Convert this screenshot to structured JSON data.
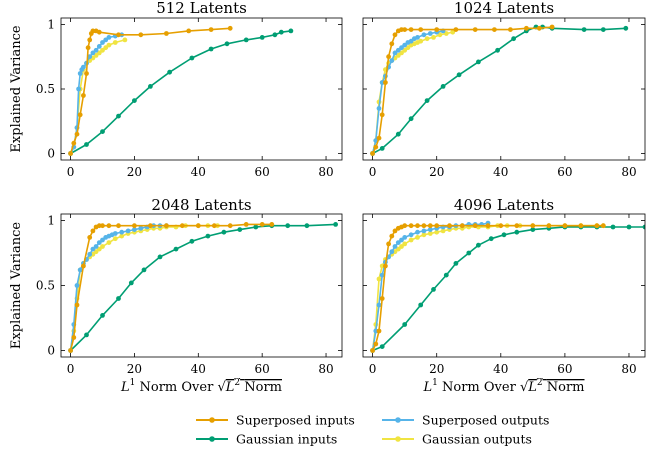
{
  "figure": {
    "ylabel": "Explained Variance",
    "xlabel_parts": {
      "l1": "L",
      "l1_sup": "1",
      "norm_over": "Norm Over",
      "l2": "L",
      "l2_sup": "2",
      "norm": "Norm"
    }
  },
  "chart_data": [
    {
      "type": "line",
      "title": "512 Latents",
      "xlim": [
        -3,
        85
      ],
      "ylim": [
        -0.05,
        1.05
      ],
      "xticks": [
        0,
        20,
        40,
        60,
        80
      ],
      "yticks": [
        0,
        0.5,
        1
      ],
      "ytick_labels": [
        "0",
        "0.5",
        "1"
      ],
      "xtick_labels": [
        "0",
        "20",
        "40",
        "60",
        "80"
      ],
      "series": [
        {
          "name": "Superposed inputs",
          "color": "#E69F00",
          "x": [
            0,
            1,
            2,
            3,
            4,
            5,
            5.5,
            6,
            6.5,
            7,
            8,
            9,
            15,
            22,
            30,
            37,
            44,
            50
          ],
          "y": [
            0.0,
            0.08,
            0.15,
            0.3,
            0.45,
            0.62,
            0.82,
            0.88,
            0.93,
            0.95,
            0.95,
            0.94,
            0.92,
            0.92,
            0.93,
            0.95,
            0.96,
            0.97
          ]
        },
        {
          "name": "Superposed outputs",
          "color": "#56B4E9",
          "x": [
            0,
            1,
            2,
            2.5,
            3,
            3.5,
            4,
            5,
            6,
            7,
            8,
            9,
            10,
            11,
            12,
            14,
            16
          ],
          "y": [
            0.0,
            0.05,
            0.2,
            0.5,
            0.62,
            0.65,
            0.67,
            0.7,
            0.75,
            0.78,
            0.8,
            0.83,
            0.86,
            0.88,
            0.9,
            0.91,
            0.92
          ]
        },
        {
          "name": "Gaussian inputs",
          "color": "#009E73",
          "x": [
            0,
            5,
            10,
            15,
            20,
            25,
            31,
            38,
            44,
            49,
            55,
            60,
            64,
            66,
            69
          ],
          "y": [
            0.0,
            0.07,
            0.17,
            0.29,
            0.41,
            0.52,
            0.63,
            0.74,
            0.81,
            0.85,
            0.88,
            0.9,
            0.92,
            0.94,
            0.95
          ]
        },
        {
          "name": "Gaussian outputs",
          "color": "#F0E442",
          "x": [
            0,
            1,
            2,
            3,
            4,
            5,
            6,
            7,
            8,
            9,
            10,
            11,
            12,
            14,
            17
          ],
          "y": [
            0.0,
            0.05,
            0.2,
            0.5,
            0.65,
            0.7,
            0.72,
            0.74,
            0.76,
            0.78,
            0.8,
            0.82,
            0.84,
            0.86,
            0.88
          ]
        }
      ]
    },
    {
      "type": "line",
      "title": "1024 Latents",
      "xlim": [
        -3,
        85
      ],
      "ylim": [
        -0.05,
        1.05
      ],
      "xticks": [
        0,
        20,
        40,
        60,
        80
      ],
      "yticks": [
        0,
        0.5,
        1
      ],
      "ytick_labels": [
        "0",
        "0.5",
        "1"
      ],
      "xtick_labels": [
        "0",
        "20",
        "40",
        "60",
        "80"
      ],
      "series": [
        {
          "name": "Superposed inputs",
          "color": "#E69F00",
          "x": [
            0,
            1,
            2,
            3,
            4,
            5,
            6,
            7,
            8,
            9,
            10,
            12,
            15,
            20,
            26,
            32,
            38,
            43,
            48,
            52,
            56
          ],
          "y": [
            0.0,
            0.05,
            0.12,
            0.3,
            0.55,
            0.75,
            0.85,
            0.92,
            0.95,
            0.96,
            0.96,
            0.96,
            0.96,
            0.96,
            0.96,
            0.96,
            0.96,
            0.96,
            0.97,
            0.97,
            0.98
          ]
        },
        {
          "name": "Superposed outputs",
          "color": "#56B4E9",
          "x": [
            0,
            1,
            2,
            3,
            4,
            5,
            6,
            7,
            8,
            9,
            10,
            11,
            12,
            13,
            14,
            16,
            18,
            20,
            22
          ],
          "y": [
            0.0,
            0.1,
            0.35,
            0.55,
            0.6,
            0.67,
            0.72,
            0.78,
            0.8,
            0.82,
            0.84,
            0.86,
            0.87,
            0.89,
            0.9,
            0.92,
            0.93,
            0.94,
            0.95
          ]
        },
        {
          "name": "Gaussian inputs",
          "color": "#009E73",
          "x": [
            0,
            3,
            8,
            12,
            17,
            22,
            27,
            33,
            39,
            44,
            48,
            51,
            53,
            56,
            66,
            72,
            79
          ],
          "y": [
            0.0,
            0.04,
            0.15,
            0.27,
            0.41,
            0.52,
            0.61,
            0.71,
            0.8,
            0.89,
            0.95,
            0.98,
            0.98,
            0.97,
            0.96,
            0.96,
            0.97
          ]
        },
        {
          "name": "Gaussian outputs",
          "color": "#F0E442",
          "x": [
            0,
            1,
            2,
            3,
            4,
            5,
            6,
            7,
            8,
            9,
            10,
            11,
            12,
            13,
            14,
            15,
            17,
            19,
            21,
            23,
            25
          ],
          "y": [
            0.0,
            0.1,
            0.4,
            0.55,
            0.65,
            0.7,
            0.72,
            0.74,
            0.76,
            0.78,
            0.8,
            0.82,
            0.84,
            0.85,
            0.86,
            0.87,
            0.89,
            0.9,
            0.92,
            0.93,
            0.94
          ]
        }
      ]
    },
    {
      "type": "line",
      "title": "2048 Latents",
      "xlim": [
        -3,
        85
      ],
      "ylim": [
        -0.05,
        1.05
      ],
      "xticks": [
        0,
        20,
        40,
        60,
        80
      ],
      "yticks": [
        0,
        0.5,
        1
      ],
      "ytick_labels": [
        "0",
        "0.5",
        "1"
      ],
      "xtick_labels": [
        "0",
        "20",
        "40",
        "60",
        "80"
      ],
      "series": [
        {
          "name": "Superposed inputs",
          "color": "#E69F00",
          "x": [
            0,
            1,
            2,
            4,
            6,
            7,
            8,
            9,
            10,
            12,
            15,
            20,
            25,
            30,
            35,
            40,
            45,
            50,
            55,
            60,
            63
          ],
          "y": [
            0.0,
            0.1,
            0.35,
            0.65,
            0.87,
            0.92,
            0.95,
            0.96,
            0.96,
            0.96,
            0.96,
            0.96,
            0.96,
            0.96,
            0.96,
            0.96,
            0.96,
            0.96,
            0.97,
            0.97,
            0.97
          ]
        },
        {
          "name": "Superposed outputs",
          "color": "#56B4E9",
          "x": [
            0,
            1,
            2,
            3,
            4,
            5,
            6,
            7,
            8,
            9,
            10,
            11,
            12,
            13,
            14,
            16,
            18,
            20,
            22,
            24,
            26,
            28,
            30
          ],
          "y": [
            0.0,
            0.2,
            0.5,
            0.62,
            0.67,
            0.7,
            0.74,
            0.78,
            0.8,
            0.83,
            0.85,
            0.87,
            0.88,
            0.89,
            0.9,
            0.91,
            0.92,
            0.93,
            0.94,
            0.95,
            0.96,
            0.96,
            0.96
          ]
        },
        {
          "name": "Gaussian inputs",
          "color": "#009E73",
          "x": [
            0,
            5,
            10,
            15,
            19,
            23,
            28,
            33,
            38,
            43,
            48,
            53,
            58,
            63,
            68,
            74,
            83
          ],
          "y": [
            0.0,
            0.12,
            0.27,
            0.4,
            0.52,
            0.62,
            0.72,
            0.78,
            0.84,
            0.88,
            0.91,
            0.93,
            0.95,
            0.96,
            0.96,
            0.96,
            0.97
          ]
        },
        {
          "name": "Gaussian outputs",
          "color": "#F0E442",
          "x": [
            0,
            1,
            2,
            3,
            4,
            5,
            6,
            7,
            8,
            9,
            10,
            12,
            14,
            16,
            18,
            20,
            22,
            24,
            26,
            28,
            30,
            33,
            36,
            40,
            43,
            46
          ],
          "y": [
            0.0,
            0.15,
            0.4,
            0.62,
            0.67,
            0.7,
            0.72,
            0.74,
            0.76,
            0.78,
            0.8,
            0.83,
            0.86,
            0.88,
            0.9,
            0.91,
            0.92,
            0.93,
            0.94,
            0.94,
            0.95,
            0.95,
            0.96,
            0.96,
            0.96,
            0.96
          ]
        }
      ]
    },
    {
      "type": "line",
      "title": "4096 Latents",
      "xlim": [
        -3,
        85
      ],
      "ylim": [
        -0.05,
        1.05
      ],
      "xticks": [
        0,
        20,
        40,
        60,
        80
      ],
      "yticks": [
        0,
        0.5,
        1
      ],
      "ytick_labels": [
        "0",
        "0.5",
        "1"
      ],
      "xtick_labels": [
        "0",
        "20",
        "40",
        "60",
        "80"
      ],
      "series": [
        {
          "name": "Superposed inputs",
          "color": "#E69F00",
          "x": [
            0,
            1,
            2,
            3,
            4,
            5,
            6,
            7,
            8,
            9,
            10,
            12,
            14,
            16,
            18,
            20,
            24,
            28,
            32,
            36,
            40,
            45,
            50,
            55,
            60,
            65,
            70,
            72
          ],
          "y": [
            0.0,
            0.05,
            0.15,
            0.4,
            0.65,
            0.82,
            0.88,
            0.92,
            0.94,
            0.95,
            0.96,
            0.96,
            0.96,
            0.96,
            0.96,
            0.96,
            0.96,
            0.96,
            0.96,
            0.96,
            0.96,
            0.96,
            0.96,
            0.96,
            0.96,
            0.96,
            0.96,
            0.96
          ]
        },
        {
          "name": "Superposed outputs",
          "color": "#56B4E9",
          "x": [
            0,
            1,
            2,
            3,
            4,
            5,
            6,
            7,
            8,
            9,
            10,
            12,
            14,
            16,
            18,
            20,
            22,
            24,
            26,
            28,
            30,
            32,
            34,
            36
          ],
          "y": [
            0.0,
            0.15,
            0.35,
            0.58,
            0.68,
            0.72,
            0.76,
            0.8,
            0.83,
            0.85,
            0.87,
            0.89,
            0.91,
            0.92,
            0.93,
            0.94,
            0.95,
            0.95,
            0.96,
            0.96,
            0.97,
            0.97,
            0.97,
            0.98
          ]
        },
        {
          "name": "Gaussian inputs",
          "color": "#009E73",
          "x": [
            0,
            3,
            10,
            15,
            19,
            23,
            26,
            30,
            33,
            37,
            41,
            45,
            50,
            55,
            60,
            65,
            70,
            75,
            80,
            85
          ],
          "y": [
            0.0,
            0.03,
            0.2,
            0.35,
            0.47,
            0.58,
            0.67,
            0.75,
            0.81,
            0.86,
            0.89,
            0.91,
            0.93,
            0.94,
            0.95,
            0.95,
            0.95,
            0.95,
            0.95,
            0.95
          ]
        },
        {
          "name": "Gaussian outputs",
          "color": "#F0E442",
          "x": [
            0,
            1,
            2,
            3,
            4,
            5,
            6,
            7,
            8,
            9,
            10,
            12,
            14,
            16,
            18,
            20,
            22,
            24,
            26,
            28,
            30,
            33,
            36,
            39,
            42,
            46,
            50,
            55,
            60,
            65,
            70,
            72
          ],
          "y": [
            0.0,
            0.2,
            0.55,
            0.65,
            0.7,
            0.72,
            0.74,
            0.76,
            0.78,
            0.8,
            0.82,
            0.85,
            0.87,
            0.89,
            0.9,
            0.91,
            0.92,
            0.93,
            0.94,
            0.94,
            0.95,
            0.95,
            0.95,
            0.96,
            0.96,
            0.96,
            0.96,
            0.96,
            0.96,
            0.96,
            0.96,
            0.96
          ]
        }
      ]
    }
  ]
}
